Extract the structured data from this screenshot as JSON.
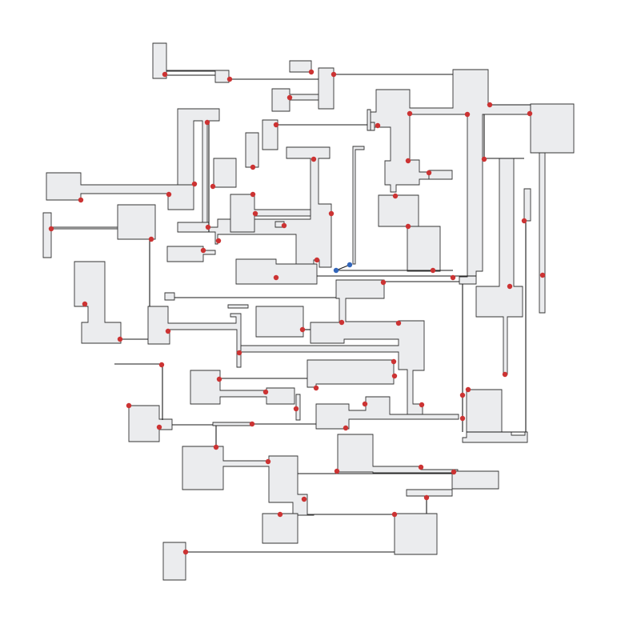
{
  "colors": {
    "room_fill": "#ebecee",
    "room_stroke": "#333333",
    "wire": "#1a1a1a",
    "node": "#cc3333",
    "node_selected": "#3366bb",
    "background": "#ffffff"
  }
}
